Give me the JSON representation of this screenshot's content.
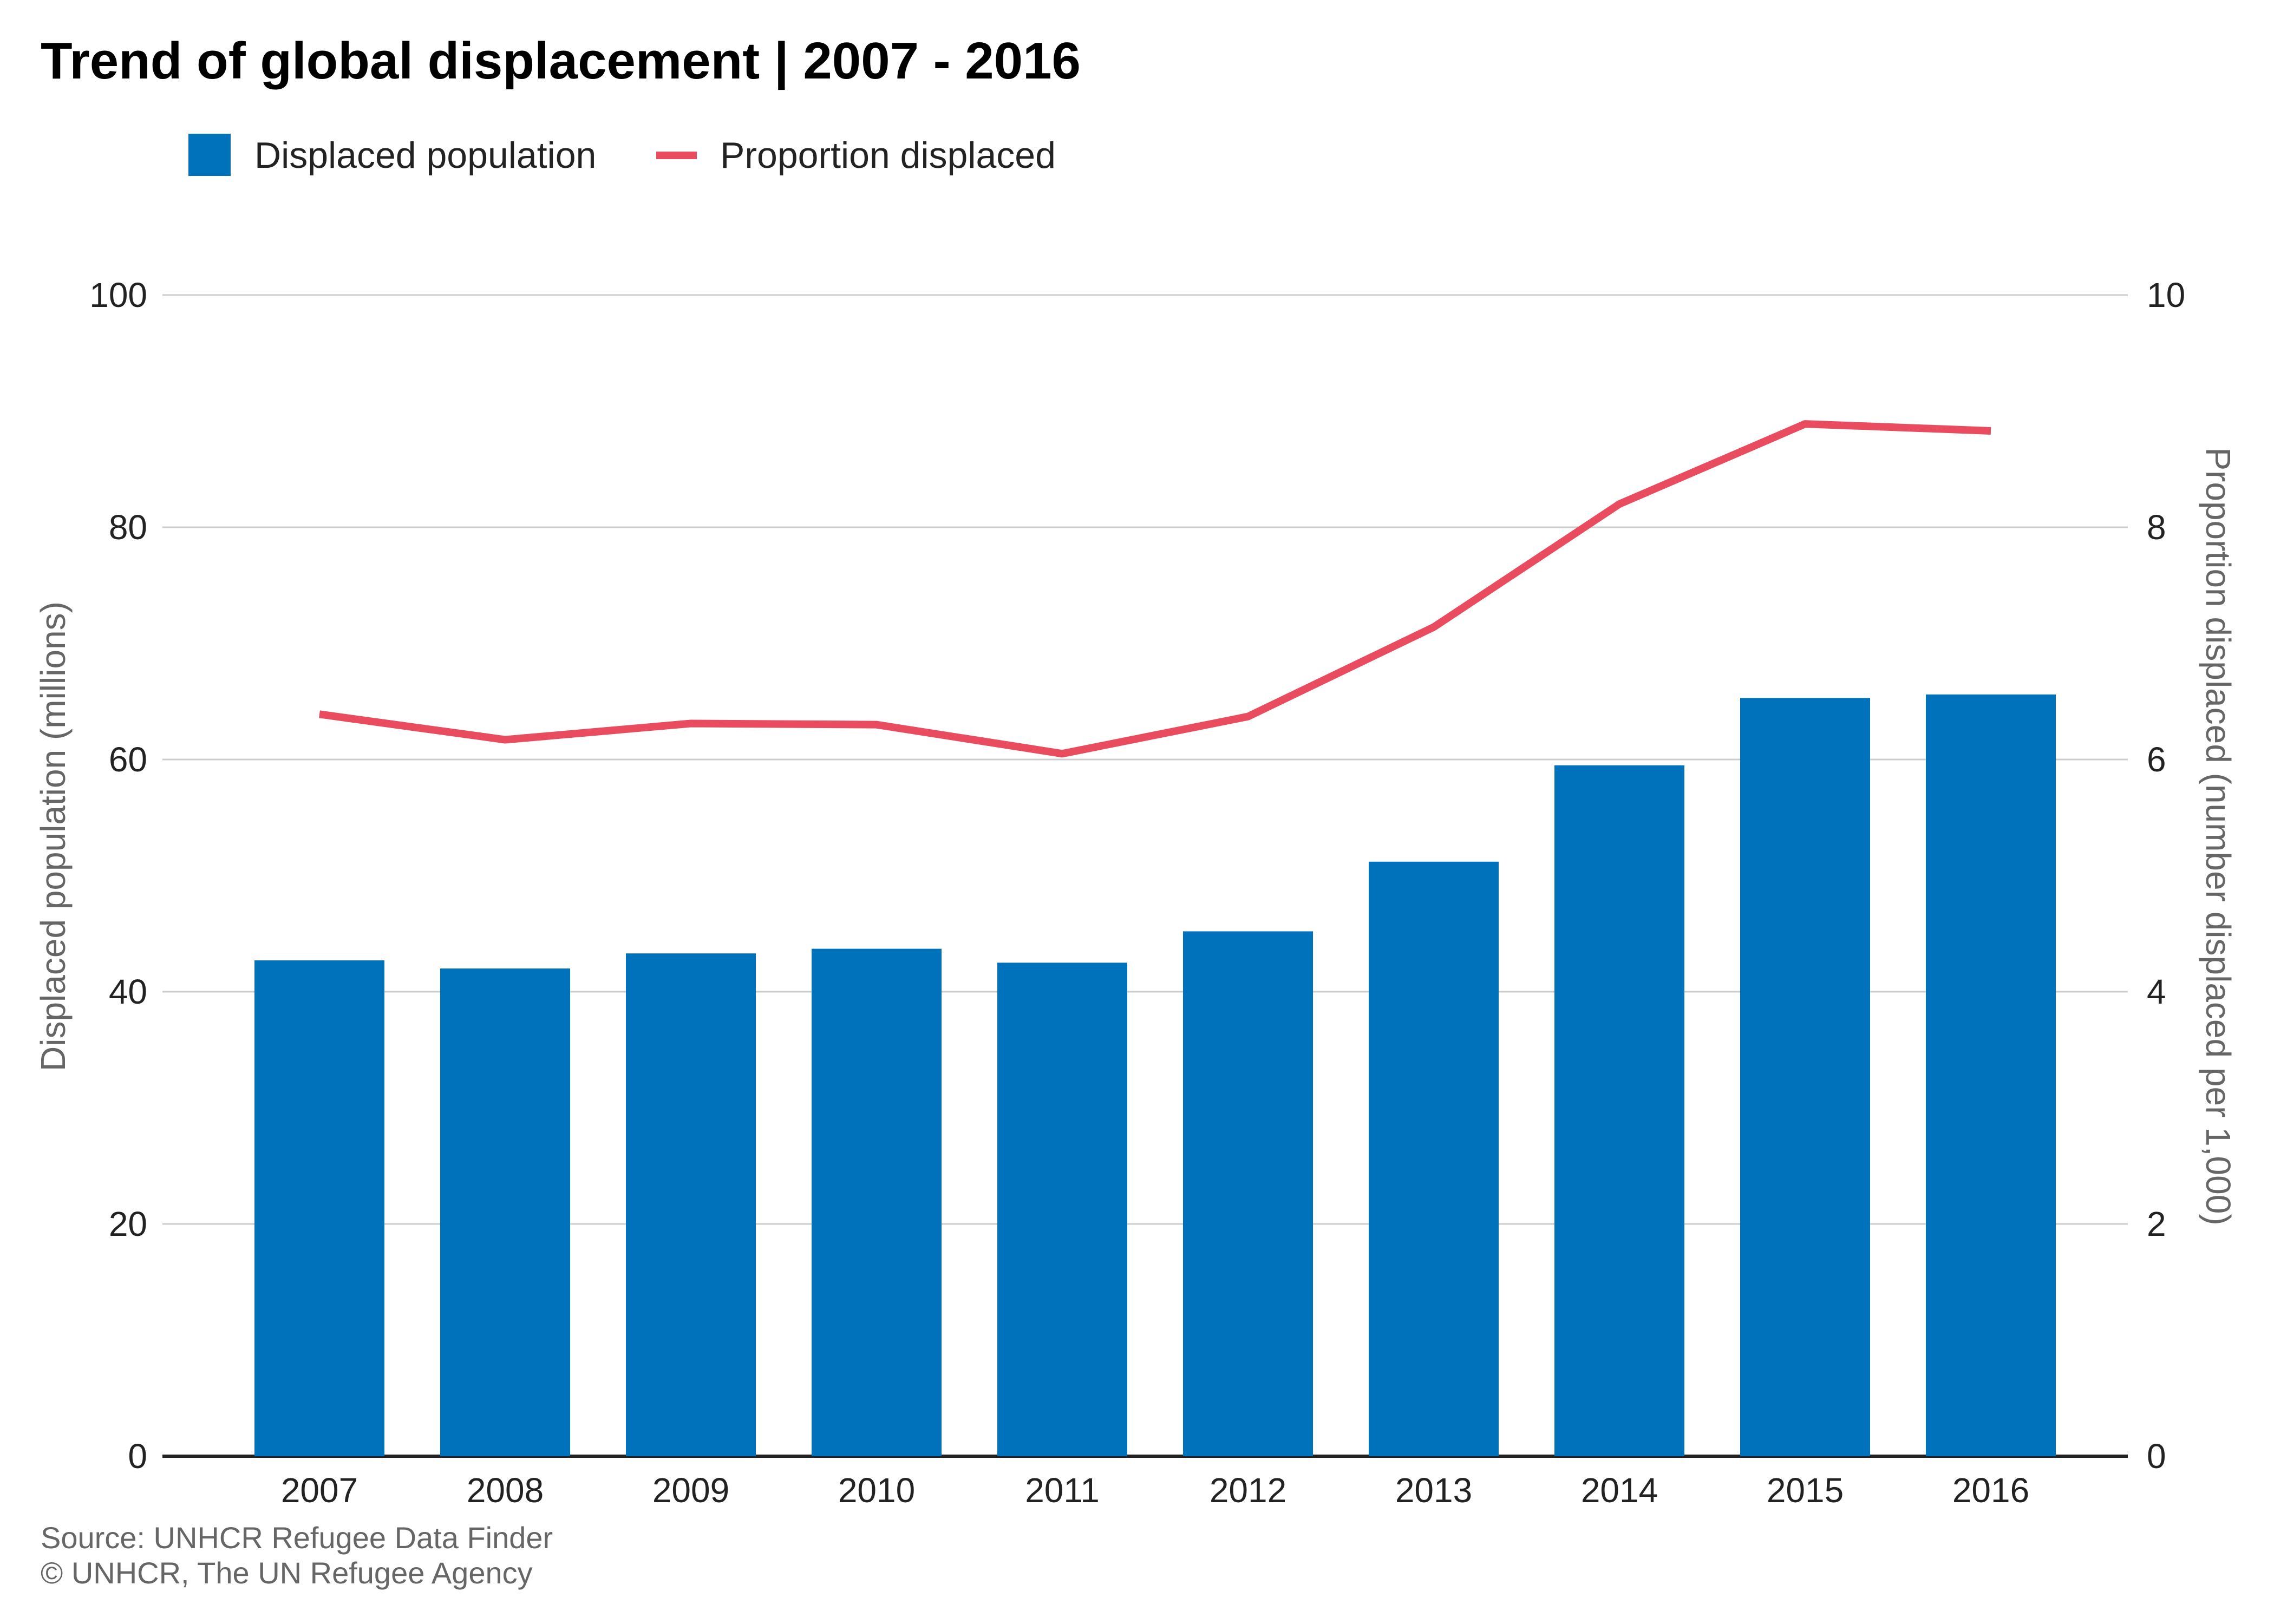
{
  "chart_data": {
    "type": "bar",
    "title": "Trend of global displacement | 2007 - 2016",
    "categories": [
      "2007",
      "2008",
      "2009",
      "2010",
      "2011",
      "2012",
      "2013",
      "2014",
      "2015",
      "2016"
    ],
    "series": [
      {
        "name": "Displaced population",
        "type": "bar",
        "axis": "left",
        "color": "#0072bc",
        "values": [
          42.7,
          42.0,
          43.3,
          43.7,
          42.5,
          45.2,
          51.2,
          59.5,
          65.3,
          65.6
        ]
      },
      {
        "name": "Proportion displaced",
        "type": "line",
        "axis": "right",
        "color": "#e94b5f",
        "values": [
          6.39,
          6.17,
          6.31,
          6.3,
          6.05,
          6.37,
          7.14,
          8.2,
          8.89,
          8.83
        ]
      }
    ],
    "ylabel_left": "Displaced population (millions)",
    "ylabel_right": "Proportion displaced (number displaced per 1,000)",
    "ylim_left": [
      0,
      100
    ],
    "ylim_right": [
      0,
      10
    ],
    "yticks_left": [
      "0",
      "20",
      "40",
      "60",
      "80",
      "100"
    ],
    "yticks_right": [
      "0",
      "2",
      "4",
      "6",
      "8",
      "10"
    ],
    "grid": true,
    "legend_position": "top-left"
  },
  "footer": {
    "source": "Source: UNHCR Refugee Data Finder",
    "copyright": "© UNHCR, The UN Refugee Agency"
  }
}
